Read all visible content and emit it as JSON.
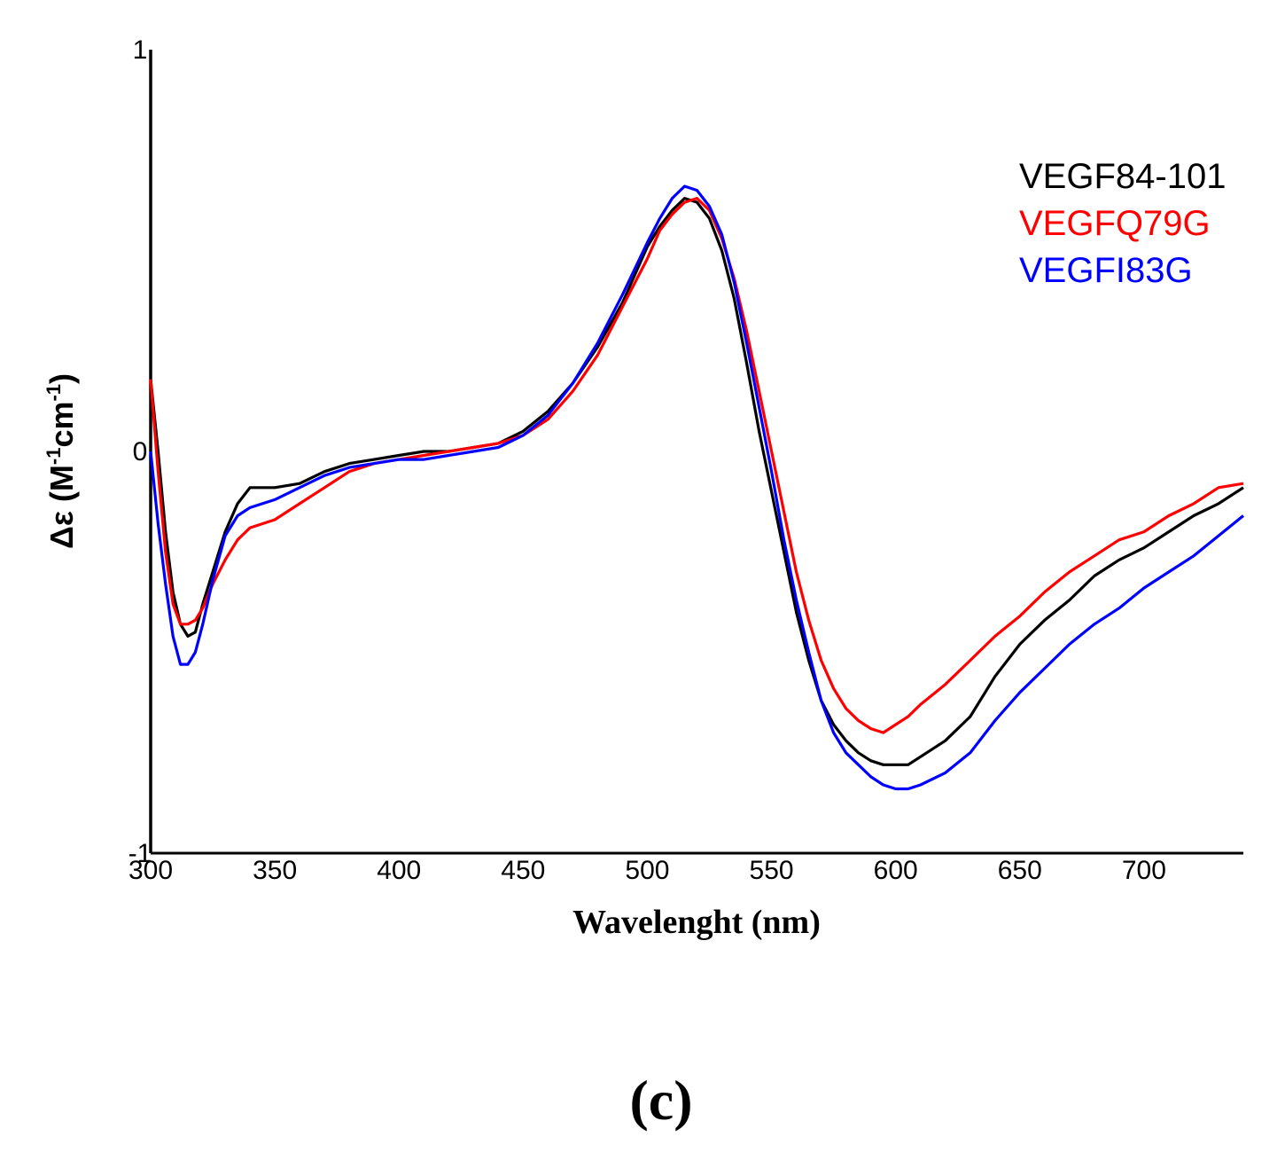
{
  "chart_data": {
    "type": "line",
    "title": "",
    "xlabel": "Wavelenght (nm)",
    "ylabel": "Δε (M-1cm-1)",
    "ylabel_parts": {
      "prefix": "Δε (M",
      "sup1": "-1",
      "mid": "cm",
      "sup2": "-1",
      "suffix": ")"
    },
    "xlim": [
      300,
      740
    ],
    "ylim": [
      -1,
      1
    ],
    "xticks": [
      "300",
      "350",
      "400",
      "450",
      "500",
      "550",
      "600",
      "650",
      "700"
    ],
    "xtick_values": [
      300,
      350,
      400,
      450,
      500,
      550,
      600,
      650,
      700
    ],
    "yticks": [
      "-1",
      "0",
      "1"
    ],
    "ytick_values": [
      -1,
      0,
      1
    ],
    "grid": false,
    "legend_position": "top-right",
    "panel_label": "(c)",
    "series": [
      {
        "name": "VEGF84-101",
        "color": "#000000",
        "x": [
          300,
          303,
          306,
          309,
          312,
          315,
          318,
          321,
          325,
          330,
          335,
          340,
          350,
          360,
          370,
          380,
          390,
          400,
          410,
          420,
          430,
          440,
          450,
          460,
          470,
          480,
          490,
          500,
          505,
          510,
          515,
          520,
          525,
          530,
          535,
          540,
          545,
          550,
          555,
          560,
          565,
          570,
          575,
          580,
          585,
          590,
          595,
          600,
          605,
          610,
          620,
          630,
          640,
          650,
          660,
          670,
          680,
          690,
          700,
          710,
          720,
          730,
          740
        ],
        "y": [
          0.18,
          0.0,
          -0.2,
          -0.35,
          -0.43,
          -0.46,
          -0.45,
          -0.38,
          -0.3,
          -0.2,
          -0.13,
          -0.09,
          -0.09,
          -0.08,
          -0.05,
          -0.03,
          -0.02,
          -0.01,
          0.0,
          0.0,
          0.01,
          0.02,
          0.05,
          0.1,
          0.17,
          0.26,
          0.37,
          0.51,
          0.56,
          0.6,
          0.63,
          0.62,
          0.58,
          0.5,
          0.38,
          0.22,
          0.05,
          -0.1,
          -0.25,
          -0.4,
          -0.52,
          -0.62,
          -0.68,
          -0.72,
          -0.75,
          -0.77,
          -0.78,
          -0.78,
          -0.78,
          -0.76,
          -0.72,
          -0.66,
          -0.56,
          -0.48,
          -0.42,
          -0.37,
          -0.31,
          -0.27,
          -0.24,
          -0.2,
          -0.16,
          -0.13,
          -0.09
        ]
      },
      {
        "name": "VEGFQ79G",
        "color": "#ff0000",
        "x": [
          300,
          303,
          306,
          309,
          312,
          315,
          318,
          321,
          325,
          330,
          335,
          340,
          350,
          360,
          370,
          380,
          390,
          400,
          410,
          420,
          430,
          440,
          450,
          460,
          470,
          480,
          490,
          500,
          505,
          510,
          515,
          520,
          525,
          530,
          535,
          540,
          545,
          550,
          555,
          560,
          565,
          570,
          575,
          580,
          585,
          590,
          595,
          600,
          605,
          610,
          620,
          630,
          640,
          650,
          660,
          670,
          680,
          690,
          700,
          710,
          720,
          730,
          740
        ],
        "y": [
          0.18,
          -0.05,
          -0.25,
          -0.38,
          -0.43,
          -0.43,
          -0.42,
          -0.39,
          -0.33,
          -0.27,
          -0.22,
          -0.19,
          -0.17,
          -0.13,
          -0.09,
          -0.05,
          -0.03,
          -0.02,
          -0.01,
          0.0,
          0.01,
          0.02,
          0.04,
          0.08,
          0.15,
          0.24,
          0.36,
          0.48,
          0.55,
          0.59,
          0.62,
          0.63,
          0.6,
          0.53,
          0.43,
          0.3,
          0.15,
          0.0,
          -0.15,
          -0.3,
          -0.42,
          -0.52,
          -0.59,
          -0.64,
          -0.67,
          -0.69,
          -0.7,
          -0.68,
          -0.66,
          -0.63,
          -0.58,
          -0.52,
          -0.46,
          -0.41,
          -0.35,
          -0.3,
          -0.26,
          -0.22,
          -0.2,
          -0.16,
          -0.13,
          -0.09,
          -0.08
        ]
      },
      {
        "name": "VEGFI83G",
        "color": "#0000ff",
        "x": [
          300,
          303,
          306,
          309,
          312,
          315,
          318,
          321,
          325,
          330,
          335,
          340,
          350,
          360,
          370,
          380,
          390,
          400,
          410,
          420,
          430,
          440,
          450,
          460,
          470,
          480,
          490,
          500,
          505,
          510,
          515,
          520,
          525,
          530,
          535,
          540,
          545,
          550,
          555,
          560,
          565,
          570,
          575,
          580,
          585,
          590,
          595,
          600,
          605,
          610,
          620,
          630,
          640,
          650,
          660,
          670,
          680,
          690,
          700,
          710,
          720,
          730,
          740
        ],
        "y": [
          0.0,
          -0.18,
          -0.33,
          -0.46,
          -0.53,
          -0.53,
          -0.5,
          -0.43,
          -0.32,
          -0.21,
          -0.16,
          -0.14,
          -0.12,
          -0.09,
          -0.06,
          -0.04,
          -0.03,
          -0.02,
          -0.02,
          -0.01,
          0.0,
          0.01,
          0.04,
          0.09,
          0.17,
          0.27,
          0.39,
          0.52,
          0.58,
          0.63,
          0.66,
          0.65,
          0.61,
          0.54,
          0.42,
          0.27,
          0.11,
          -0.05,
          -0.22,
          -0.37,
          -0.5,
          -0.62,
          -0.7,
          -0.75,
          -0.78,
          -0.81,
          -0.83,
          -0.84,
          -0.84,
          -0.83,
          -0.8,
          -0.75,
          -0.67,
          -0.6,
          -0.54,
          -0.48,
          -0.43,
          -0.39,
          -0.34,
          -0.3,
          -0.26,
          -0.21,
          -0.16
        ]
      }
    ]
  }
}
